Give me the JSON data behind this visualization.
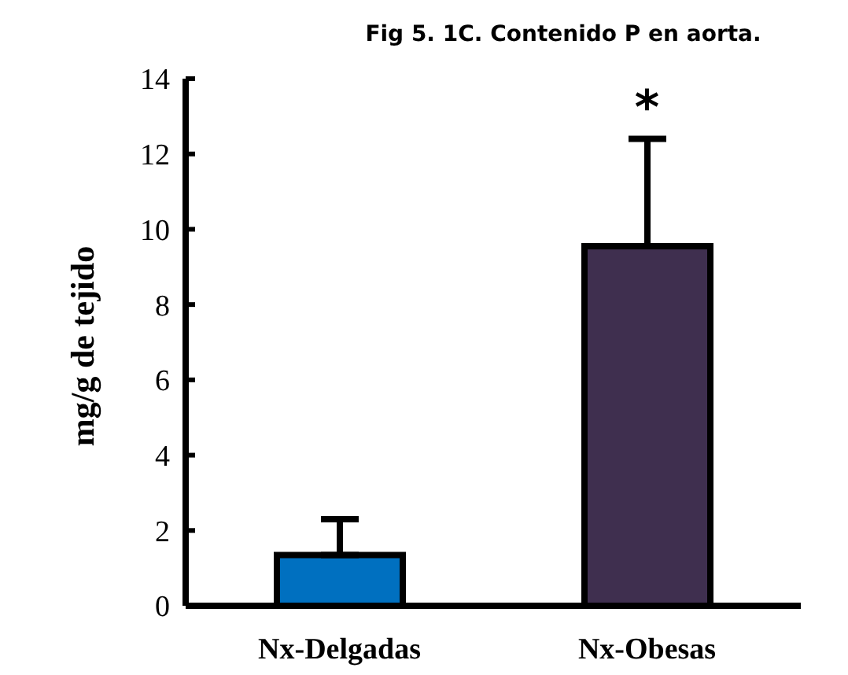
{
  "chart_data": {
    "type": "bar",
    "title": "Fig 5. 1C. Contenido P en aorta.",
    "ylabel": "mg/g de tejido",
    "categories": [
      "Nx-Delgadas",
      "Nx-Obesas"
    ],
    "values": [
      1.35,
      9.55
    ],
    "colors": [
      "#0070c0",
      "#3f2f4f"
    ],
    "errors": [
      [
        1.35,
        2.3
      ],
      [
        9.55,
        12.4
      ]
    ],
    "ylim": [
      0,
      14
    ],
    "yticks": [
      0,
      2,
      4,
      6,
      8,
      10,
      12,
      14
    ],
    "grid": false,
    "annotations": [
      {
        "text": "*",
        "x": "Nx-Obesas",
        "y": 12.4
      }
    ]
  }
}
